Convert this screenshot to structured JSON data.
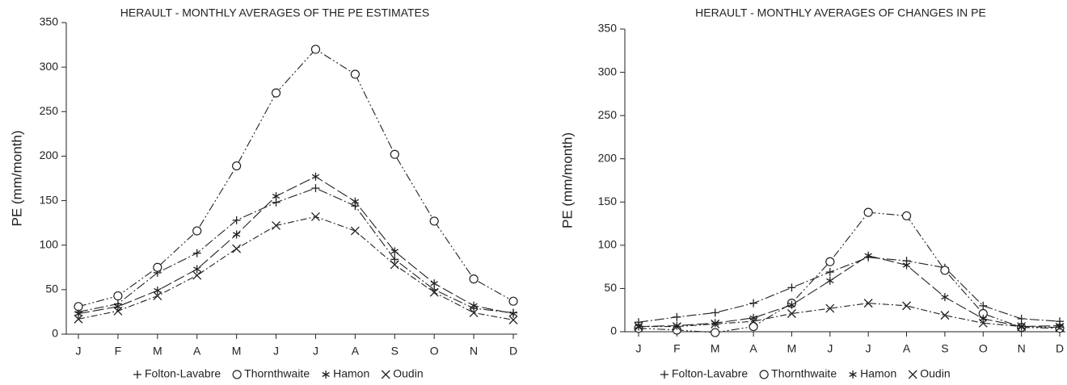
{
  "chart_data": [
    {
      "type": "line",
      "title": "HERAULT - MONTHLY AVERAGES OF THE PE ESTIMATES",
      "y_label": "PE (mm/month)",
      "categories": [
        "J",
        "F",
        "M",
        "A",
        "M",
        "J",
        "J",
        "A",
        "S",
        "O",
        "N",
        "D"
      ],
      "ylim": [
        0,
        350
      ],
      "yticks": [
        0,
        50,
        100,
        150,
        200,
        250,
        300,
        350
      ],
      "series": [
        {
          "name": "Folton-Lavabre",
          "color": "#222222",
          "marker": "plus",
          "values": [
            25,
            34,
            69,
            91,
            128,
            148,
            164,
            144,
            84,
            50,
            29,
            24
          ]
        },
        {
          "name": "Thornthwaite",
          "color": "#222222",
          "marker": "circle",
          "values": [
            31,
            43,
            75,
            116,
            189,
            271,
            320,
            292,
            202,
            127,
            62,
            37
          ]
        },
        {
          "name": "Hamon",
          "color": "#222222",
          "marker": "asterisk",
          "values": [
            23,
            31,
            49,
            73,
            112,
            155,
            177,
            149,
            93,
            57,
            32,
            23
          ]
        },
        {
          "name": "Oudin",
          "color": "#222222",
          "marker": "cross",
          "values": [
            17,
            26,
            43,
            66,
            96,
            122,
            132,
            116,
            78,
            47,
            24,
            16
          ]
        }
      ]
    },
    {
      "type": "line",
      "title": "HERAULT - MONTHLY AVERAGES OF CHANGES IN PE",
      "y_label": "PE (mm/month)",
      "categories": [
        "J",
        "F",
        "M",
        "A",
        "M",
        "J",
        "J",
        "A",
        "S",
        "O",
        "N",
        "D"
      ],
      "ylim": [
        0,
        350
      ],
      "yticks": [
        0,
        50,
        100,
        150,
        200,
        250,
        300,
        350
      ],
      "series": [
        {
          "name": "Folton-Lavabre",
          "color": "#222222",
          "marker": "plus",
          "values": [
            11,
            17,
            22,
            33,
            51,
            69,
            86,
            82,
            74,
            30,
            15,
            12
          ]
        },
        {
          "name": "Thornthwaite",
          "color": "#222222",
          "marker": "circle",
          "values": [
            4,
            2,
            -1,
            6,
            33,
            81,
            138,
            134,
            71,
            21,
            5,
            4
          ]
        },
        {
          "name": "Hamon",
          "color": "#222222",
          "marker": "asterisk",
          "values": [
            6,
            7,
            10,
            16,
            31,
            59,
            88,
            77,
            40,
            15,
            6,
            7
          ]
        },
        {
          "name": "Oudin",
          "color": "#222222",
          "marker": "cross",
          "values": [
            6,
            6,
            9,
            12,
            21,
            27,
            33,
            30,
            19,
            10,
            6,
            5
          ]
        }
      ]
    }
  ]
}
